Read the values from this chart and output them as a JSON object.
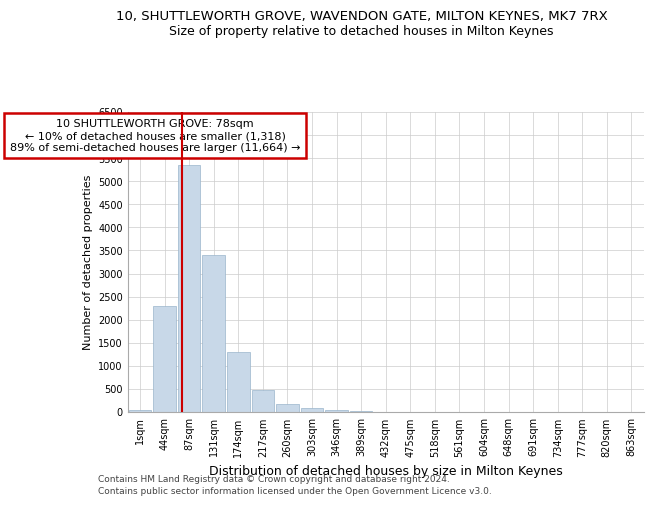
{
  "title_line1": "10, SHUTTLEWORTH GROVE, WAVENDON GATE, MILTON KEYNES, MK7 7RX",
  "title_line2": "Size of property relative to detached houses in Milton Keynes",
  "xlabel": "Distribution of detached houses by size in Milton Keynes",
  "ylabel": "Number of detached properties",
  "annotation_title": "10 SHUTTLEWORTH GROVE: 78sqm",
  "annotation_line2": "← 10% of detached houses are smaller (1,318)",
  "annotation_line3": "89% of semi-detached houses are larger (11,664) →",
  "footer1": "Contains HM Land Registry data © Crown copyright and database right 2024.",
  "footer2": "Contains public sector information licensed under the Open Government Licence v3.0.",
  "categories": [
    "1sqm",
    "44sqm",
    "87sqm",
    "131sqm",
    "174sqm",
    "217sqm",
    "260sqm",
    "303sqm",
    "346sqm",
    "389sqm",
    "432sqm",
    "475sqm",
    "518sqm",
    "561sqm",
    "604sqm",
    "648sqm",
    "691sqm",
    "734sqm",
    "777sqm",
    "820sqm",
    "863sqm"
  ],
  "values": [
    50,
    2300,
    5350,
    3400,
    1300,
    480,
    175,
    90,
    50,
    15,
    5,
    2,
    1,
    0,
    0,
    0,
    0,
    0,
    0,
    0,
    0
  ],
  "bar_color": "#c8d8e8",
  "bar_edge_color": "#9ab5cc",
  "property_line_x": 1.72,
  "property_line_color": "#cc0000",
  "annotation_box_color": "#cc0000",
  "ylim": [
    0,
    6500
  ],
  "yticks": [
    0,
    500,
    1000,
    1500,
    2000,
    2500,
    3000,
    3500,
    4000,
    4500,
    5000,
    5500,
    6000,
    6500
  ],
  "bg_color": "#ffffff",
  "grid_color": "#cccccc",
  "title_fontsize": 9.5,
  "subtitle_fontsize": 9,
  "xlabel_fontsize": 9,
  "ylabel_fontsize": 8,
  "tick_fontsize": 7,
  "annotation_fontsize": 8,
  "footer_fontsize": 6.5
}
